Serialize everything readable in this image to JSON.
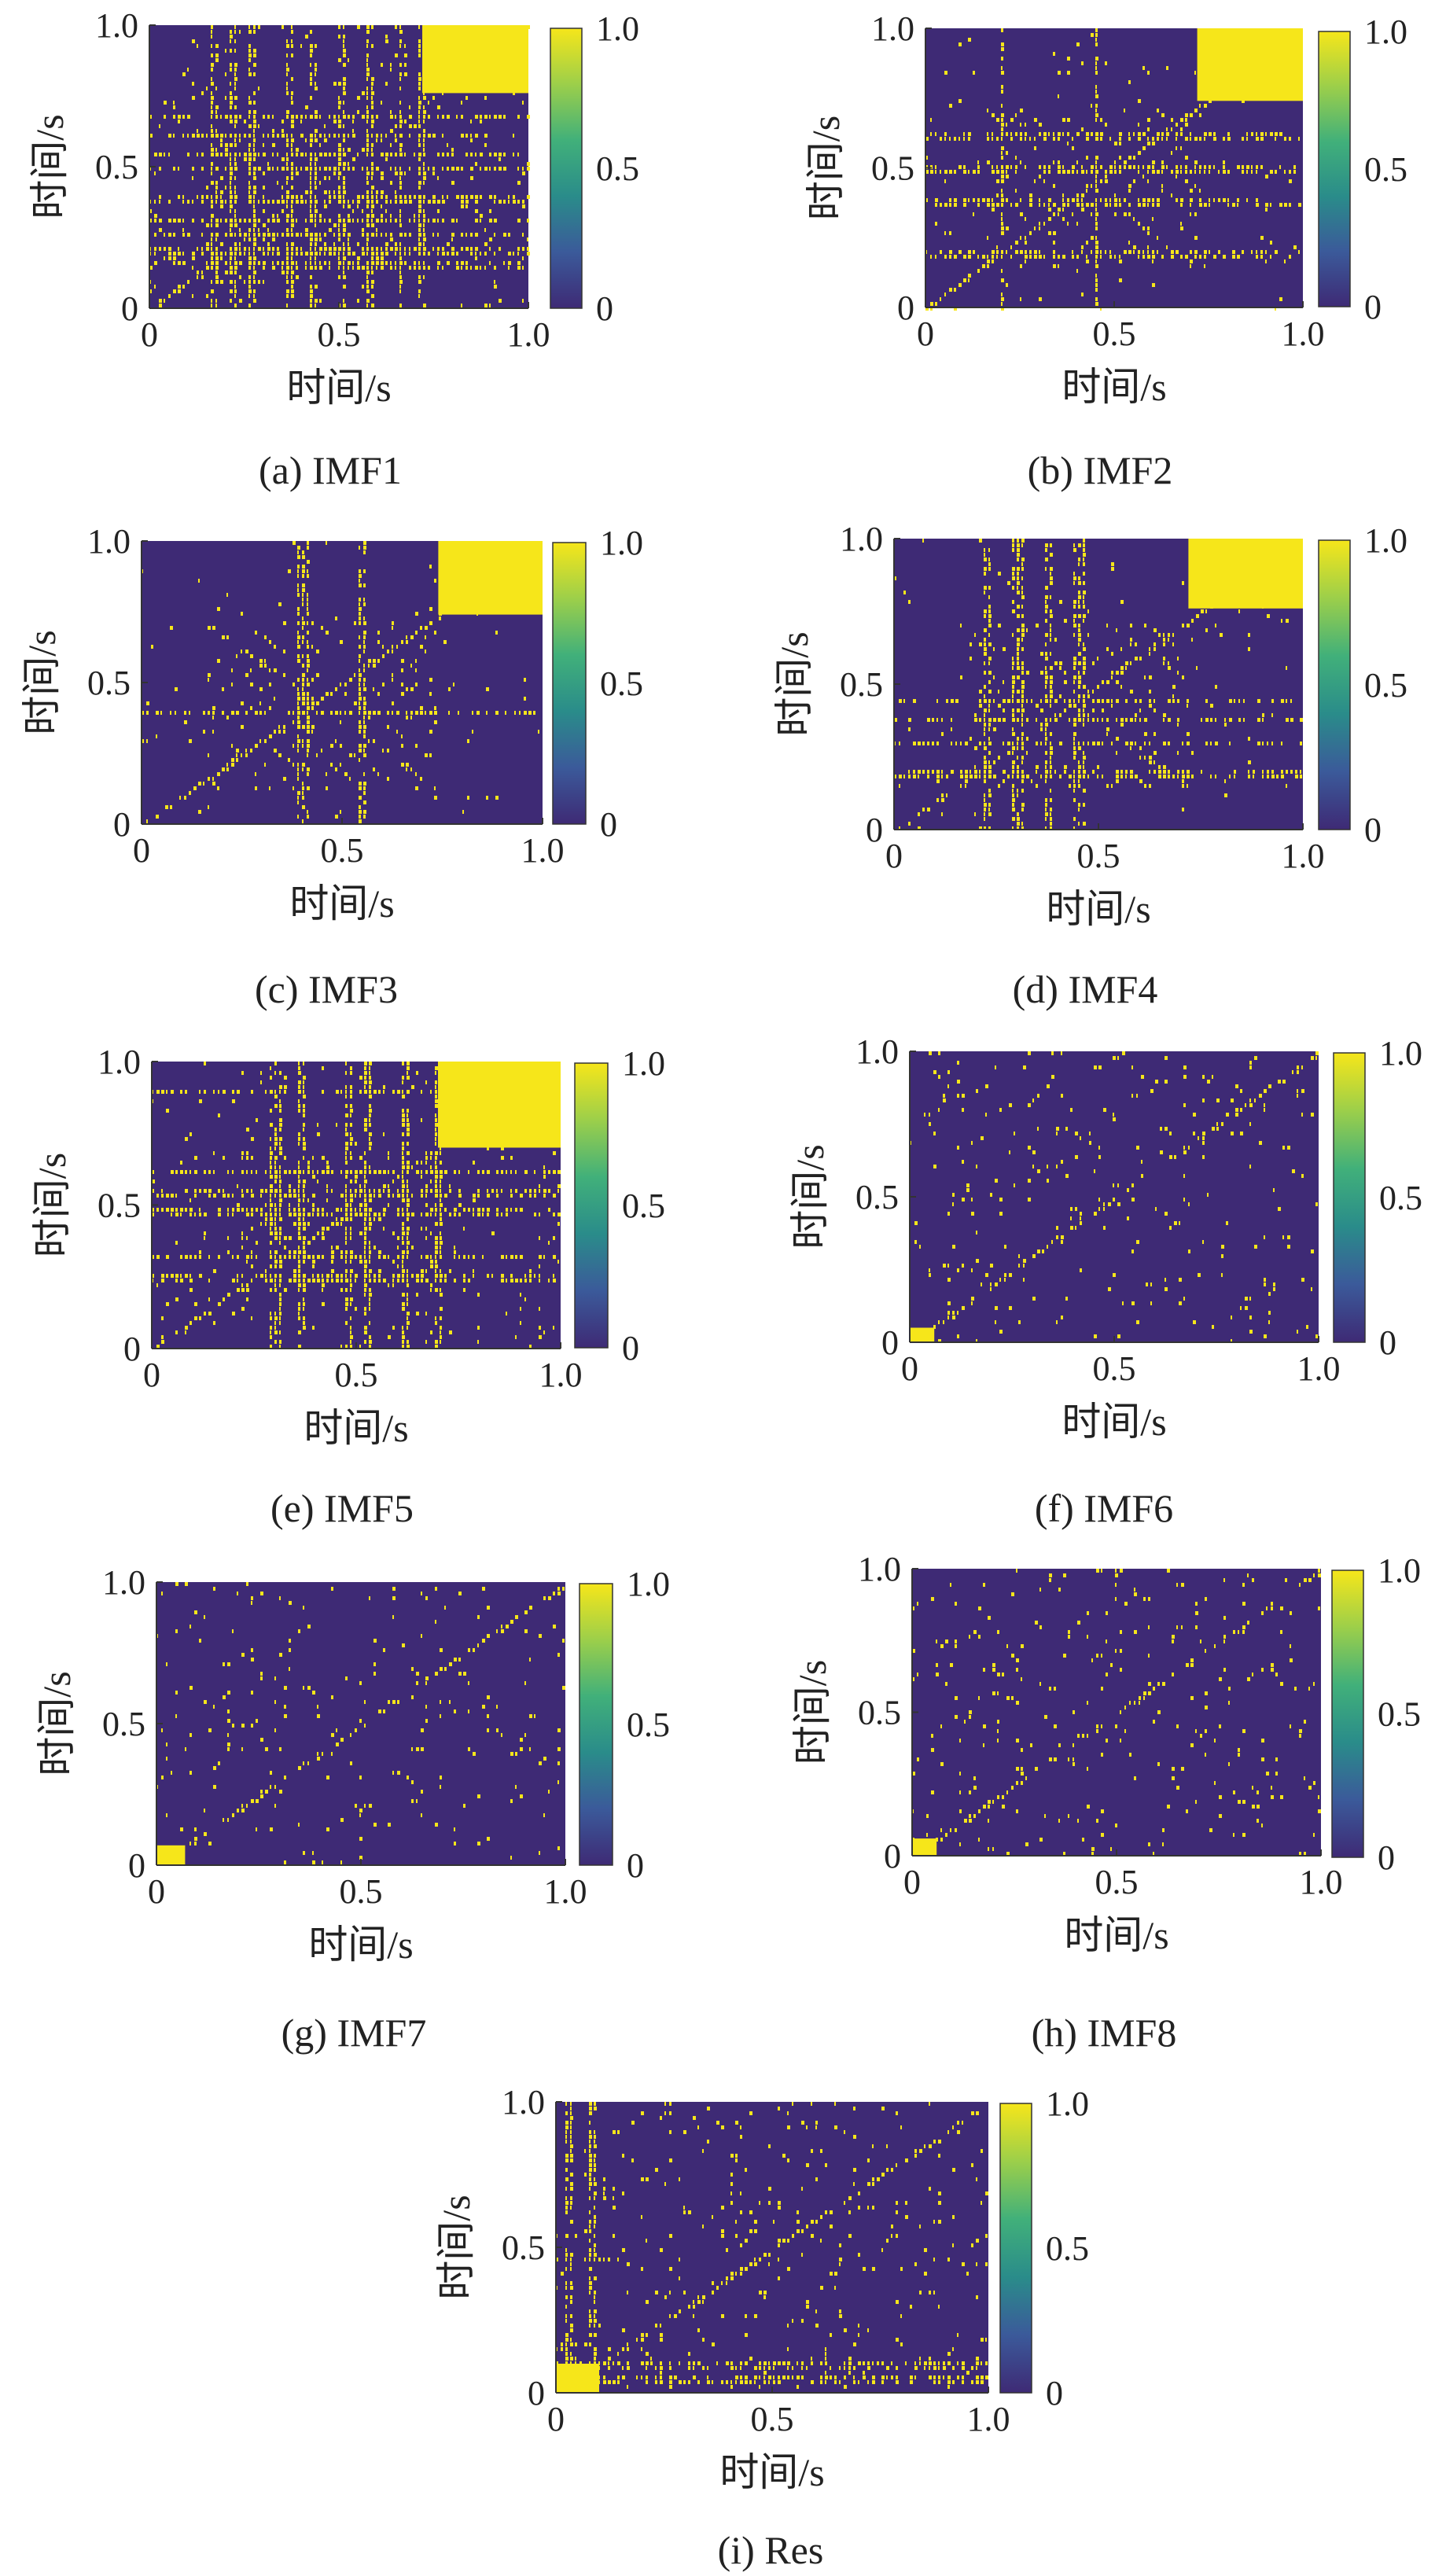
{
  "figure": {
    "colormap": [
      "#3e2a75",
      "#3b5a9a",
      "#2a8c8a",
      "#41b07a",
      "#9ccf4a",
      "#f6e61a"
    ],
    "background_color": "#3e2a75",
    "highlight_color": "#f6e61a"
  },
  "chart_data": [
    {
      "id": "imf1",
      "type": "heatmap",
      "caption": "(a) IMF1",
      "xlabel": "时间/s",
      "ylabel": "时间/s",
      "xlim": [
        0,
        1.0
      ],
      "ylim": [
        0,
        1.0
      ],
      "x_ticks": [
        "0",
        "0.5",
        "1.0"
      ],
      "y_ticks": [
        "0",
        "0.5",
        "1.0"
      ],
      "colorbar": {
        "range": [
          0,
          1.0
        ],
        "ticks": [
          "0",
          "0.5",
          "1.0"
        ]
      },
      "texture": {
        "seed": 11,
        "density": 0.16,
        "block": [
          0.72,
          0.76,
          1.0,
          1.0
        ],
        "h_bands": [
          0.16,
          0.21,
          0.27,
          0.32,
          0.39,
          0.5,
          0.55,
          0.62,
          0.68
        ],
        "v_bands": [
          0.17,
          0.22,
          0.27,
          0.37,
          0.43,
          0.5,
          0.58,
          0.66,
          0.72
        ],
        "diamond": [
          0.18,
          0.16,
          0.72,
          0.7
        ]
      }
    },
    {
      "id": "imf2",
      "type": "heatmap",
      "caption": "(b) IMF2",
      "xlabel": "时间/s",
      "ylabel": "时间/s",
      "xlim": [
        0,
        1.0
      ],
      "ylim": [
        0,
        1.0
      ],
      "x_ticks": [
        "0",
        "0.5",
        "1.0"
      ],
      "y_ticks": [
        "0",
        "0.5",
        "1.0"
      ],
      "colorbar": {
        "range": [
          0,
          1.0
        ],
        "ticks": [
          "0",
          "0.5",
          "1.0"
        ]
      },
      "texture": {
        "seed": 23,
        "density": 0.06,
        "block": [
          0.72,
          0.74,
          1.0,
          1.0
        ],
        "h_bands": [
          0.2,
          0.38,
          0.5,
          0.62
        ],
        "v_bands": [
          0.2,
          0.45
        ],
        "diamond": [
          0.15,
          0.15,
          0.72,
          0.72
        ]
      }
    },
    {
      "id": "imf3",
      "type": "heatmap",
      "caption": "(c) IMF3",
      "xlabel": "时间/s",
      "ylabel": "时间/s",
      "xlim": [
        0,
        1.0
      ],
      "ylim": [
        0,
        1.0
      ],
      "x_ticks": [
        "0",
        "0.5",
        "1.0"
      ],
      "y_ticks": [
        "0",
        "0.5",
        "1.0"
      ],
      "colorbar": {
        "range": [
          0,
          1.0
        ],
        "ticks": [
          "0",
          "0.5",
          "1.0"
        ]
      },
      "texture": {
        "seed": 37,
        "density": 0.04,
        "block": [
          0.74,
          0.74,
          1.0,
          1.0
        ],
        "h_bands": [
          0.4
        ],
        "v_bands": [
          0.4,
          0.55
        ],
        "diamond": [
          0.15,
          0.12,
          0.74,
          0.72
        ]
      }
    },
    {
      "id": "imf4",
      "type": "heatmap",
      "caption": "(d) IMF4",
      "xlabel": "时间/s",
      "ylabel": "时间/s",
      "xlim": [
        0,
        1.0
      ],
      "ylim": [
        0,
        1.0
      ],
      "x_ticks": [
        "0",
        "0.5",
        "1.0"
      ],
      "y_ticks": [
        "0",
        "0.5",
        "1.0"
      ],
      "colorbar": {
        "range": [
          0,
          1.0
        ],
        "ticks": [
          "0",
          "0.5",
          "1.0"
        ]
      },
      "texture": {
        "seed": 41,
        "density": 0.05,
        "block": [
          0.72,
          0.76,
          1.0,
          1.0
        ],
        "h_bands": [
          0.2,
          0.3,
          0.38,
          0.45
        ],
        "v_bands": [
          0.22,
          0.3,
          0.37,
          0.45
        ],
        "diamond": [
          0.15,
          0.15,
          0.72,
          0.72
        ]
      }
    },
    {
      "id": "imf5",
      "type": "heatmap",
      "caption": "(e) IMF5",
      "xlabel": "时间/s",
      "ylabel": "时间/s",
      "xlim": [
        0,
        1.0
      ],
      "ylim": [
        0,
        1.0
      ],
      "x_ticks": [
        "0",
        "0.5",
        "1.0"
      ],
      "y_ticks": [
        "0",
        "0.5",
        "1.0"
      ],
      "colorbar": {
        "range": [
          0,
          1.0
        ],
        "ticks": [
          "0",
          "0.5",
          "1.0"
        ]
      },
      "texture": {
        "seed": 53,
        "density": 0.12,
        "block": [
          0.7,
          0.7,
          1.0,
          1.0
        ],
        "h_bands": [
          0.25,
          0.33,
          0.48,
          0.55,
          0.62,
          0.9
        ],
        "v_bands": [
          0.3,
          0.36,
          0.48,
          0.52,
          0.62,
          0.7
        ],
        "diamond": [
          0.2,
          0.2,
          0.7,
          0.7
        ]
      }
    },
    {
      "id": "imf6",
      "type": "heatmap",
      "caption": "(f) IMF6",
      "xlabel": "时间/s",
      "ylabel": "时间/s",
      "xlim": [
        0,
        1.0
      ],
      "ylim": [
        0,
        1.0
      ],
      "x_ticks": [
        "0",
        "0.5",
        "1.0"
      ],
      "y_ticks": [
        "0",
        "0.5",
        "1.0"
      ],
      "colorbar": {
        "range": [
          0,
          1.0
        ],
        "ticks": [
          "0",
          "0.5",
          "1.0"
        ]
      },
      "texture": {
        "seed": 67,
        "density": 0.12,
        "block": [
          0.0,
          0.0,
          0.06,
          0.05
        ],
        "h_bands": [],
        "v_bands": [],
        "diamond": null
      }
    },
    {
      "id": "imf7",
      "type": "heatmap",
      "caption": "(g) IMF7",
      "xlabel": "时间/s",
      "ylabel": "时间/s",
      "xlim": [
        0,
        1.0
      ],
      "ylim": [
        0,
        1.0
      ],
      "x_ticks": [
        "0",
        "0.5",
        "1.0"
      ],
      "y_ticks": [
        "0",
        "0.5",
        "1.0"
      ],
      "colorbar": {
        "range": [
          0,
          1.0
        ],
        "ticks": [
          "0",
          "0.5",
          "1.0"
        ]
      },
      "texture": {
        "seed": 79,
        "density": 0.12,
        "block": [
          0.0,
          0.0,
          0.07,
          0.07
        ],
        "h_bands": [],
        "v_bands": [],
        "diamond": null
      }
    },
    {
      "id": "imf8",
      "type": "heatmap",
      "caption": "(h) IMF8",
      "xlabel": "时间/s",
      "ylabel": "时间/s",
      "xlim": [
        0,
        1.0
      ],
      "ylim": [
        0,
        1.0
      ],
      "x_ticks": [
        "0",
        "0.5",
        "1.0"
      ],
      "y_ticks": [
        "0",
        "0.5",
        "1.0"
      ],
      "colorbar": {
        "range": [
          0,
          1.0
        ],
        "ticks": [
          "0",
          "0.5",
          "1.0"
        ]
      },
      "texture": {
        "seed": 83,
        "density": 0.14,
        "block": [
          0.0,
          0.0,
          0.06,
          0.06
        ],
        "h_bands": [],
        "v_bands": [],
        "diamond": null
      }
    },
    {
      "id": "res",
      "type": "heatmap",
      "caption": "(i) Res",
      "xlabel": "时间/s",
      "ylabel": "时间/s",
      "xlim": [
        0,
        1.0
      ],
      "ylim": [
        0,
        1.0
      ],
      "x_ticks": [
        "0",
        "0.5",
        "1.0"
      ],
      "y_ticks": [
        "0",
        "0.5",
        "1.0"
      ],
      "colorbar": {
        "range": [
          0,
          1.0
        ],
        "ticks": [
          "0",
          "0.5",
          "1.0"
        ]
      },
      "texture": {
        "seed": 97,
        "density": 0.15,
        "block": [
          0.0,
          0.0,
          0.1,
          0.1
        ],
        "h_bands": [
          0.05,
          0.1
        ],
        "v_bands": [
          0.03,
          0.08
        ],
        "diamond": null
      }
    }
  ]
}
